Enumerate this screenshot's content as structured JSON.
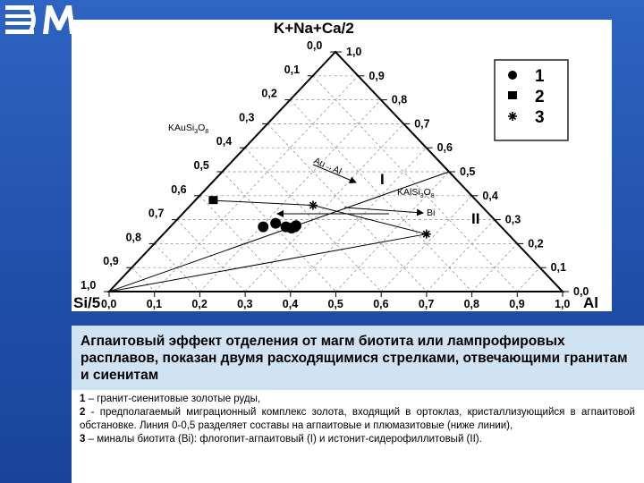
{
  "slide": {
    "logo_text": "ЭМ"
  },
  "diagram": {
    "apex_top": "K+Na+Ca/2",
    "apex_left": "Si/5",
    "apex_right": "Al",
    "ticks": [
      "0,0",
      "0,1",
      "0,2",
      "0,3",
      "0,4",
      "0,5",
      "0,6",
      "0,7",
      "0,8",
      "0,9",
      "1,0"
    ],
    "labels": {
      "kausi": "KAuSi",
      "kausi_sub3": "3",
      "kausi_o": "O",
      "kausi_sub8": "8",
      "kalsi": "KAlSi",
      "kalsi_sub3": "3",
      "kalsi_o": "O",
      "kalsi_sub8": "8",
      "au_al": "Au→Al",
      "bi": "Bi",
      "roman_1": "I",
      "roman_2": "II"
    },
    "legend": [
      "1",
      "2",
      "3"
    ],
    "legend_symbols": [
      "circle",
      "square",
      "asterisk"
    ],
    "data_points": {
      "group1_circles": [
        {
          "si5": 0.525,
          "kna": 0.27,
          "al": 0.205
        },
        {
          "si5": 0.49,
          "kna": 0.285,
          "al": 0.225
        },
        {
          "si5": 0.475,
          "kna": 0.27,
          "al": 0.255
        },
        {
          "si5": 0.465,
          "kna": 0.265,
          "al": 0.27
        },
        {
          "si5": 0.455,
          "kna": 0.27,
          "al": 0.275
        },
        {
          "si5": 0.45,
          "kna": 0.275,
          "al": 0.275
        }
      ],
      "group2_square": {
        "si5": 0.58,
        "kna": 0.38,
        "al": 0.04
      },
      "group3_stars": [
        {
          "name": "I",
          "si5": 0.37,
          "kna": 0.36,
          "al": 0.27
        },
        {
          "name": "II",
          "si5": 0.18,
          "kna": 0.24,
          "al": 0.58
        }
      ]
    }
  },
  "caption": {
    "title": "Агпаитовый эффект отделения от магм биотита или лампрофировых расплавов, показан двумя расходящимися стрелками, отвечающими гранитам и сиенитам",
    "line1_num": "1",
    "line1": " – гранит-сиенитовые золотые руды,",
    "line2_num": "2",
    "line2": " - предполагаемый миграционный комплекс золота, входящий в ортоклаз, кристаллизующийся в агпаитовой обстановке. Линия 0-0,5 разделяет составы на агпаитовые и плюмазитовые (ниже линии),",
    "line3_num": "3",
    "line3": " – миналы биотита (Bi): флогопит-агпаитовый (I) и истонит-сидерофиллитовый (II)."
  }
}
